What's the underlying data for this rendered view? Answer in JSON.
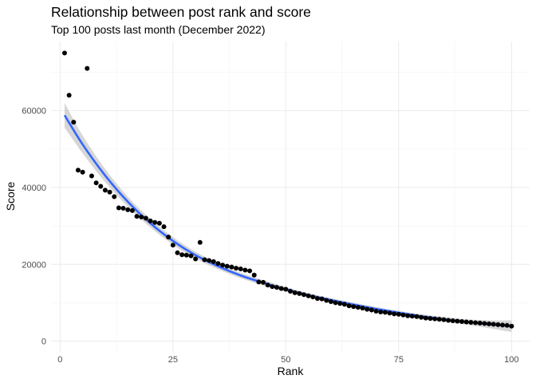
{
  "chart_data": {
    "type": "scatter",
    "title": "Relationship between post rank and score",
    "subtitle": "Top 100 posts last month (December 2022)",
    "xlabel": "Rank",
    "ylabel": "Score",
    "xlim": [
      -2,
      104
    ],
    "ylim": [
      -3000,
      78000
    ],
    "x_ticks": [
      0,
      25,
      50,
      75,
      100
    ],
    "y_ticks": [
      0,
      20000,
      40000,
      60000
    ],
    "grid": true,
    "colors": {
      "points": "#000000",
      "trend_line": "#3366FF",
      "confidence_band": "#999999",
      "grid_major": "#EBEBEB",
      "grid_minor": "#F4F4F4"
    },
    "series": [
      {
        "type": "scatter",
        "x": [
          1,
          2,
          3,
          4,
          5,
          6,
          7,
          8,
          9,
          10,
          11,
          12,
          13,
          14,
          15,
          16,
          17,
          18,
          19,
          20,
          21,
          22,
          23,
          24,
          25,
          26,
          27,
          28,
          29,
          30,
          31,
          32,
          33,
          34,
          35,
          36,
          37,
          38,
          39,
          40,
          41,
          42,
          43,
          44,
          45,
          46,
          47,
          48,
          49,
          50,
          51,
          52,
          53,
          54,
          55,
          56,
          57,
          58,
          59,
          60,
          61,
          62,
          63,
          64,
          65,
          66,
          67,
          68,
          69,
          70,
          71,
          72,
          73,
          74,
          75,
          76,
          77,
          78,
          79,
          80,
          81,
          82,
          83,
          84,
          85,
          86,
          87,
          88,
          89,
          90,
          91,
          92,
          93,
          94,
          95,
          96,
          97,
          98,
          99,
          100
        ],
        "y": [
          75000,
          64000,
          57000,
          44500,
          44000,
          71000,
          43000,
          41200,
          40300,
          39300,
          38800,
          37600,
          34700,
          34600,
          34200,
          34000,
          32500,
          32300,
          32000,
          31300,
          30900,
          30700,
          29800,
          27100,
          25000,
          23000,
          22500,
          22400,
          22200,
          21400,
          25700,
          21200,
          21000,
          20700,
          20200,
          19800,
          19500,
          19300,
          19000,
          18800,
          18500,
          18300,
          17200,
          15400,
          15300,
          14600,
          14200,
          14000,
          13700,
          13500,
          13000,
          12600,
          12400,
          12100,
          11800,
          11500,
          11100,
          11000,
          10600,
          10300,
          10000,
          9800,
          9600,
          9200,
          9000,
          8800,
          8600,
          8300,
          8100,
          7800,
          7600,
          7500,
          7300,
          7100,
          7000,
          6800,
          6600,
          6500,
          6400,
          6200,
          6000,
          5900,
          5800,
          5700,
          5600,
          5400,
          5300,
          5200,
          5100,
          5000,
          4900,
          4800,
          4700,
          4600,
          4500,
          4400,
          4300,
          4200,
          4100,
          3900
        ]
      },
      {
        "type": "smooth",
        "x": [
          1,
          5,
          10,
          15,
          20,
          25,
          30,
          35,
          40,
          45,
          50,
          55,
          60,
          65,
          70,
          75,
          80,
          85,
          90,
          95,
          100
        ],
        "y": [
          58800,
          51200,
          43100,
          36300,
          30700,
          26100,
          22400,
          19500,
          17100,
          15200,
          13500,
          12000,
          10700,
          9500,
          8400,
          7400,
          6500,
          5700,
          5000,
          4400,
          3900
        ],
        "ymin": [
          55600,
          48900,
          41400,
          35000,
          29600,
          25100,
          21500,
          18700,
          16400,
          14500,
          12900,
          11500,
          10200,
          9000,
          7900,
          6900,
          6000,
          5100,
          4300,
          3400,
          2400
        ],
        "ymax": [
          62000,
          53500,
          44800,
          37600,
          31800,
          27100,
          23300,
          20300,
          17800,
          15900,
          14100,
          12500,
          11200,
          10000,
          8900,
          7900,
          7000,
          6300,
          5700,
          5400,
          5400
        ]
      }
    ]
  }
}
